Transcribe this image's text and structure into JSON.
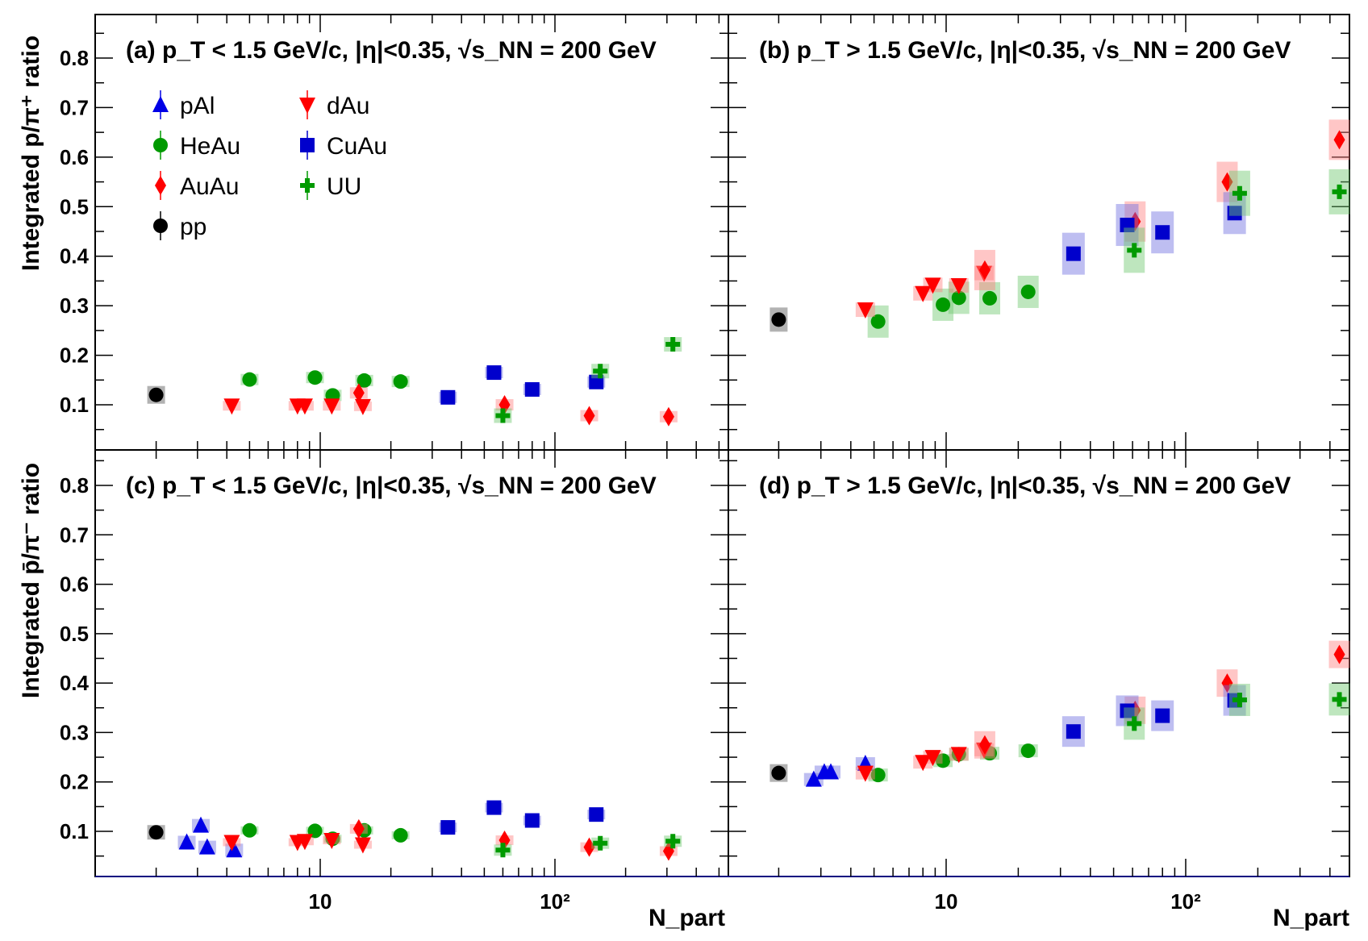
{
  "figure": {
    "y_axis_top": "Integrated p/π⁺ ratio",
    "y_axis_bottom": "Integrated p̄/π⁻ ratio",
    "x_axis": "N_part"
  },
  "legend": [
    {
      "name": "pAl",
      "marker": "triangle-up",
      "color": "#0000e6"
    },
    {
      "name": "dAu",
      "marker": "triangle-down",
      "color": "#ff0000"
    },
    {
      "name": "HeAu",
      "marker": "circle",
      "color": "#009a00"
    },
    {
      "name": "CuAu",
      "marker": "square",
      "color": "#0000cc"
    },
    {
      "name": "AuAu",
      "marker": "diamond",
      "color": "#ff0000"
    },
    {
      "name": "UU",
      "marker": "cross",
      "color": "#009a00"
    },
    {
      "name": "pp",
      "marker": "circle",
      "color": "#000000"
    }
  ],
  "chart_data": [
    {
      "panel": "a",
      "type": "scatter",
      "title": "(a) p_T < 1.5 GeV/c, |η|<0.35, √s_NN = 200 GeV",
      "xscale": "log",
      "xlim": [
        1.5,
        700
      ],
      "ylim": [
        0.02,
        0.88
      ],
      "xticks": [
        10,
        100
      ],
      "xticklabels": [
        "10",
        "10²"
      ],
      "yticks": [
        0.1,
        0.2,
        0.3,
        0.4,
        0.5,
        0.6,
        0.7,
        0.8
      ],
      "ylabel": "Integrated p/π⁺ ratio",
      "legend_position": "top-left",
      "series": [
        {
          "name": "pp",
          "points": [
            [
              2,
              0.12
            ]
          ]
        },
        {
          "name": "HeAu",
          "points": [
            [
              5.0,
              0.151
            ],
            [
              9.5,
              0.155
            ],
            [
              11.3,
              0.119
            ],
            [
              15.4,
              0.149
            ],
            [
              22,
              0.147
            ]
          ]
        },
        {
          "name": "dAu",
          "points": [
            [
              4.2,
              0.098
            ],
            [
              8.0,
              0.098
            ],
            [
              8.6,
              0.098
            ],
            [
              11.2,
              0.098
            ],
            [
              15.2,
              0.097
            ]
          ]
        },
        {
          "name": "AuAu",
          "points": [
            [
              14.6,
              0.124
            ],
            [
              61,
              0.1
            ],
            [
              140,
              0.078
            ],
            [
              305,
              0.076
            ]
          ]
        },
        {
          "name": "CuAu",
          "points": [
            [
              35,
              0.115
            ],
            [
              55,
              0.165
            ],
            [
              80,
              0.131
            ],
            [
              150,
              0.146
            ]
          ]
        },
        {
          "name": "UU",
          "points": [
            [
              60,
              0.078
            ],
            [
              156,
              0.168
            ],
            [
              318,
              0.222
            ]
          ]
        }
      ]
    },
    {
      "panel": "b",
      "type": "scatter",
      "title": "(b) p_T > 1.5 GeV/c, |η|<0.35, √s_NN = 200 GeV",
      "xscale": "log",
      "xlim": [
        1.5,
        700
      ],
      "ylim": [
        0.02,
        0.88
      ],
      "xticks": [
        10,
        100
      ],
      "xticklabels": [
        "10",
        "10²"
      ],
      "yticks": [
        0.1,
        0.2,
        0.3,
        0.4,
        0.5,
        0.6,
        0.7,
        0.8
      ],
      "series": [
        {
          "name": "pp",
          "points": [
            [
              2,
              0.272
            ]
          ]
        },
        {
          "name": "HeAu",
          "points": [
            [
              5.2,
              0.268
            ],
            [
              9.7,
              0.302
            ],
            [
              11.3,
              0.316
            ],
            [
              15.2,
              0.315
            ],
            [
              22,
              0.328
            ]
          ]
        },
        {
          "name": "dAu",
          "points": [
            [
              4.6,
              0.292
            ],
            [
              8.0,
              0.325
            ],
            [
              8.8,
              0.342
            ],
            [
              11.3,
              0.341
            ],
            [
              14.4,
              0.366
            ]
          ]
        },
        {
          "name": "AuAu",
          "points": [
            [
              14.5,
              0.372
            ],
            [
              61.5,
              0.47
            ],
            [
              149,
              0.55
            ],
            [
              438,
              0.635
            ]
          ]
        },
        {
          "name": "CuAu",
          "points": [
            [
              34,
              0.405
            ],
            [
              57,
              0.463
            ],
            [
              80,
              0.448
            ],
            [
              160,
              0.487
            ]
          ]
        },
        {
          "name": "UU",
          "points": [
            [
              61,
              0.412
            ],
            [
              168,
              0.527
            ],
            [
              438,
              0.53
            ]
          ]
        }
      ]
    },
    {
      "panel": "c",
      "type": "scatter",
      "title": "(c) p_T < 1.5 GeV/c, |η|<0.35, √s_NN = 200 GeV",
      "xscale": "log",
      "xlim": [
        1.5,
        700
      ],
      "ylim": [
        0.02,
        0.88
      ],
      "xticks": [
        10,
        100
      ],
      "xticklabels": [
        "10",
        "10²"
      ],
      "yticks": [
        0.1,
        0.2,
        0.3,
        0.4,
        0.5,
        0.6,
        0.7,
        0.8
      ],
      "ylabel": "Integrated p̄/π⁻ ratio",
      "xlabel": "N_part",
      "series": [
        {
          "name": "pp",
          "points": [
            [
              2,
              0.098
            ]
          ]
        },
        {
          "name": "pAl",
          "points": [
            [
              2.7,
              0.078
            ],
            [
              3.1,
              0.112
            ],
            [
              3.3,
              0.068
            ],
            [
              4.3,
              0.062
            ]
          ]
        },
        {
          "name": "HeAu",
          "points": [
            [
              5.0,
              0.102
            ],
            [
              9.5,
              0.101
            ],
            [
              11.3,
              0.085
            ],
            [
              15.4,
              0.102
            ],
            [
              22,
              0.092
            ]
          ]
        },
        {
          "name": "dAu",
          "points": [
            [
              4.2,
              0.078
            ],
            [
              8.0,
              0.078
            ],
            [
              8.6,
              0.08
            ],
            [
              11.2,
              0.082
            ],
            [
              15.2,
              0.073
            ]
          ]
        },
        {
          "name": "AuAu",
          "points": [
            [
              14.6,
              0.105
            ],
            [
              61,
              0.082
            ],
            [
              140,
              0.068
            ],
            [
              305,
              0.06
            ]
          ]
        },
        {
          "name": "CuAu",
          "points": [
            [
              35,
              0.108
            ],
            [
              55,
              0.148
            ],
            [
              80,
              0.122
            ],
            [
              150,
              0.134
            ]
          ]
        },
        {
          "name": "UU",
          "points": [
            [
              60,
              0.062
            ],
            [
              156,
              0.076
            ],
            [
              318,
              0.08
            ]
          ]
        }
      ]
    },
    {
      "panel": "d",
      "type": "scatter",
      "title": "(d) p_T > 1.5 GeV/c, |η|<0.35, √s_NN = 200 GeV",
      "xscale": "log",
      "xlim": [
        1.5,
        700
      ],
      "ylim": [
        0.02,
        0.88
      ],
      "xticks": [
        10,
        100
      ],
      "xticklabels": [
        "10",
        "10²"
      ],
      "yticks": [
        0.1,
        0.2,
        0.3,
        0.4,
        0.5,
        0.6,
        0.7,
        0.8
      ],
      "xlabel": "N_part",
      "series": [
        {
          "name": "pp",
          "points": [
            [
              2,
              0.218
            ]
          ]
        },
        {
          "name": "pAl",
          "points": [
            [
              2.8,
              0.205
            ],
            [
              3.1,
              0.22
            ],
            [
              3.3,
              0.22
            ],
            [
              4.6,
              0.237
            ]
          ]
        },
        {
          "name": "HeAu",
          "points": [
            [
              5.2,
              0.214
            ],
            [
              9.7,
              0.243
            ],
            [
              11.3,
              0.256
            ],
            [
              15.2,
              0.258
            ],
            [
              22,
              0.263
            ]
          ]
        },
        {
          "name": "dAu",
          "points": [
            [
              4.6,
              0.218
            ],
            [
              8.0,
              0.24
            ],
            [
              8.8,
              0.25
            ],
            [
              11.3,
              0.256
            ],
            [
              14.4,
              0.265
            ]
          ]
        },
        {
          "name": "AuAu",
          "points": [
            [
              14.5,
              0.275
            ],
            [
              61.5,
              0.345
            ],
            [
              149,
              0.4
            ],
            [
              438,
              0.458
            ]
          ]
        },
        {
          "name": "CuAu",
          "points": [
            [
              34,
              0.302
            ],
            [
              57,
              0.344
            ],
            [
              80,
              0.334
            ],
            [
              160,
              0.365
            ]
          ]
        },
        {
          "name": "UU",
          "points": [
            [
              61,
              0.318
            ],
            [
              168,
              0.366
            ],
            [
              438,
              0.367
            ]
          ]
        }
      ]
    }
  ]
}
